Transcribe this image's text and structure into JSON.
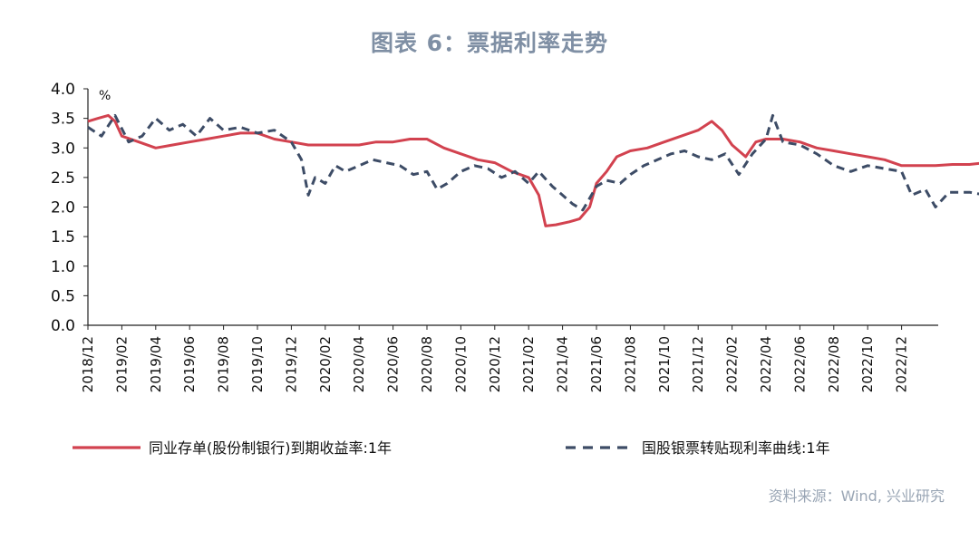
{
  "title": "图表 6：票据利率走势",
  "source": "资料来源：Wind, 兴业研究",
  "chart_data": {
    "type": "line",
    "y_unit": "%",
    "ylim": [
      0,
      4
    ],
    "y_ticks": [
      "0.0",
      "0.5",
      "1.0",
      "1.5",
      "2.0",
      "2.5",
      "3.0",
      "3.5",
      "4.0"
    ],
    "x_ticks": [
      "2018/12",
      "2019/02",
      "2019/04",
      "2019/06",
      "2019/08",
      "2019/10",
      "2019/12",
      "2020/02",
      "2020/04",
      "2020/06",
      "2020/08",
      "2020/10",
      "2020/12",
      "2021/02",
      "2021/04",
      "2021/06",
      "2021/08",
      "2021/10",
      "2021/12",
      "2022/02",
      "2022/04",
      "2022/06",
      "2022/08",
      "2022/10",
      "2022/12"
    ],
    "series": [
      {
        "name": "同业存单(股份制银行)到期收益率:1年",
        "color": "#d2424f",
        "dash": "solid",
        "points": [
          [
            0,
            3.45
          ],
          [
            0.3,
            3.5
          ],
          [
            0.6,
            3.55
          ],
          [
            0.8,
            3.45
          ],
          [
            1.0,
            3.2
          ],
          [
            1.5,
            3.1
          ],
          [
            2.0,
            3.0
          ],
          [
            2.5,
            3.05
          ],
          [
            3.0,
            3.1
          ],
          [
            3.5,
            3.15
          ],
          [
            4.0,
            3.2
          ],
          [
            4.5,
            3.25
          ],
          [
            5.0,
            3.25
          ],
          [
            5.5,
            3.15
          ],
          [
            6.0,
            3.1
          ],
          [
            6.5,
            3.05
          ],
          [
            7.0,
            3.05
          ],
          [
            7.5,
            3.05
          ],
          [
            8.0,
            3.05
          ],
          [
            8.5,
            3.1
          ],
          [
            9.0,
            3.1
          ],
          [
            9.5,
            3.15
          ],
          [
            10.0,
            3.15
          ],
          [
            10.5,
            3.0
          ],
          [
            11.0,
            2.9
          ],
          [
            11.5,
            2.8
          ],
          [
            12.0,
            2.75
          ],
          [
            12.5,
            2.6
          ],
          [
            13.0,
            2.5
          ],
          [
            13.3,
            2.2
          ],
          [
            13.5,
            1.68
          ],
          [
            13.8,
            1.7
          ],
          [
            14.2,
            1.75
          ],
          [
            14.5,
            1.8
          ],
          [
            14.8,
            2.0
          ],
          [
            15.0,
            2.4
          ],
          [
            15.3,
            2.6
          ],
          [
            15.6,
            2.85
          ],
          [
            16.0,
            2.95
          ],
          [
            16.5,
            3.0
          ],
          [
            17.0,
            3.1
          ],
          [
            17.5,
            3.2
          ],
          [
            18.0,
            3.3
          ],
          [
            18.4,
            3.45
          ],
          [
            18.7,
            3.3
          ],
          [
            19.0,
            3.05
          ],
          [
            19.4,
            2.85
          ],
          [
            19.7,
            3.1
          ],
          [
            20.0,
            3.15
          ],
          [
            20.5,
            3.15
          ],
          [
            21.0,
            3.1
          ],
          [
            21.5,
            3.0
          ],
          [
            22.0,
            2.95
          ],
          [
            22.5,
            2.9
          ],
          [
            23.0,
            2.85
          ],
          [
            23.5,
            2.8
          ],
          [
            24.0,
            2.7
          ],
          [
            24.5,
            2.7
          ],
          [
            25.0,
            2.7
          ],
          [
            25.5,
            2.72
          ],
          [
            26.0,
            2.72
          ],
          [
            26.5,
            2.75
          ],
          [
            27.0,
            2.75
          ],
          [
            27.5,
            2.72
          ],
          [
            28.0,
            2.7
          ],
          [
            28.5,
            2.65
          ],
          [
            28.8,
            2.5
          ],
          [
            29.2,
            2.45
          ],
          [
            29.6,
            2.55
          ],
          [
            30.0,
            2.65
          ],
          [
            30.5,
            2.6
          ],
          [
            31.0,
            2.45
          ],
          [
            31.5,
            2.4
          ],
          [
            32.0,
            2.3
          ],
          [
            32.5,
            2.35
          ],
          [
            33.0,
            2.3
          ],
          [
            33.5,
            2.25
          ],
          [
            33.8,
            2.1
          ],
          [
            34.0,
            1.9
          ],
          [
            34.3,
            1.95
          ],
          [
            34.6,
            1.9
          ],
          [
            35.0,
            1.95
          ],
          [
            35.5,
            2.0
          ],
          [
            36.0,
            2.0
          ],
          [
            36.5,
            2.05
          ],
          [
            36.8,
            2.15
          ],
          [
            37.0,
            2.6
          ],
          [
            37.3,
            2.45
          ],
          [
            37.6,
            2.75
          ],
          [
            38.0,
            2.6
          ],
          [
            38.3,
            2.45
          ],
          [
            38.6,
            2.6
          ],
          [
            39.0,
            2.55
          ],
          [
            39.3,
            2.6
          ]
        ]
      },
      {
        "name": "国股银票转贴现利率曲线:1年",
        "color": "#3d4c66",
        "dash": "dashed",
        "points": [
          [
            0,
            3.35
          ],
          [
            0.4,
            3.2
          ],
          [
            0.8,
            3.55
          ],
          [
            1.2,
            3.1
          ],
          [
            1.6,
            3.2
          ],
          [
            2.0,
            3.5
          ],
          [
            2.4,
            3.3
          ],
          [
            2.8,
            3.4
          ],
          [
            3.2,
            3.2
          ],
          [
            3.6,
            3.5
          ],
          [
            4.0,
            3.3
          ],
          [
            4.5,
            3.35
          ],
          [
            5.0,
            3.25
          ],
          [
            5.5,
            3.3
          ],
          [
            6.0,
            3.1
          ],
          [
            6.3,
            2.8
          ],
          [
            6.5,
            2.2
          ],
          [
            6.7,
            2.5
          ],
          [
            7.0,
            2.4
          ],
          [
            7.3,
            2.7
          ],
          [
            7.6,
            2.6
          ],
          [
            8.0,
            2.7
          ],
          [
            8.4,
            2.8
          ],
          [
            8.8,
            2.75
          ],
          [
            9.2,
            2.7
          ],
          [
            9.6,
            2.55
          ],
          [
            10.0,
            2.6
          ],
          [
            10.3,
            2.3
          ],
          [
            10.6,
            2.4
          ],
          [
            11.0,
            2.6
          ],
          [
            11.4,
            2.7
          ],
          [
            11.8,
            2.65
          ],
          [
            12.2,
            2.5
          ],
          [
            12.6,
            2.6
          ],
          [
            13.0,
            2.4
          ],
          [
            13.3,
            2.6
          ],
          [
            13.7,
            2.35
          ],
          [
            14.0,
            2.2
          ],
          [
            14.3,
            2.05
          ],
          [
            14.6,
            1.95
          ],
          [
            15.0,
            2.35
          ],
          [
            15.3,
            2.45
          ],
          [
            15.7,
            2.4
          ],
          [
            16.0,
            2.55
          ],
          [
            16.4,
            2.7
          ],
          [
            16.8,
            2.8
          ],
          [
            17.2,
            2.9
          ],
          [
            17.6,
            2.95
          ],
          [
            18.0,
            2.85
          ],
          [
            18.4,
            2.8
          ],
          [
            18.8,
            2.9
          ],
          [
            19.2,
            2.55
          ],
          [
            19.6,
            2.9
          ],
          [
            20.0,
            3.15
          ],
          [
            20.2,
            3.55
          ],
          [
            20.5,
            3.1
          ],
          [
            21.0,
            3.05
          ],
          [
            21.5,
            2.9
          ],
          [
            22.0,
            2.7
          ],
          [
            22.5,
            2.6
          ],
          [
            23.0,
            2.7
          ],
          [
            23.5,
            2.65
          ],
          [
            24.0,
            2.6
          ],
          [
            24.3,
            2.2
          ],
          [
            24.7,
            2.3
          ],
          [
            25.0,
            2.0
          ],
          [
            25.4,
            2.25
          ],
          [
            26.0,
            2.25
          ],
          [
            26.5,
            2.2
          ],
          [
            27.0,
            2.25
          ],
          [
            27.5,
            2.2
          ],
          [
            27.8,
            1.8
          ],
          [
            28.1,
            2.1
          ],
          [
            28.4,
            0.8
          ],
          [
            28.7,
            1.8
          ],
          [
            29.0,
            2.6
          ],
          [
            29.3,
            2.95
          ],
          [
            29.6,
            2.5
          ],
          [
            30.0,
            2.4
          ],
          [
            30.3,
            1.95
          ],
          [
            30.6,
            2.1
          ],
          [
            31.0,
            2.2
          ],
          [
            31.4,
            1.8
          ],
          [
            31.7,
            1.4
          ],
          [
            32.0,
            1.3
          ],
          [
            32.3,
            0.9
          ],
          [
            32.6,
            1.5
          ],
          [
            33.0,
            1.6
          ],
          [
            33.3,
            1.3
          ],
          [
            33.6,
            1.1
          ],
          [
            34.0,
            1.15
          ],
          [
            34.3,
            0.75
          ],
          [
            34.6,
            1.35
          ],
          [
            35.0,
            1.2
          ],
          [
            35.3,
            1.5
          ],
          [
            35.7,
            1.4
          ],
          [
            36.0,
            1.65
          ],
          [
            36.5,
            1.55
          ],
          [
            37.0,
            1.4
          ],
          [
            37.5,
            1.3
          ],
          [
            38.0,
            1.3
          ],
          [
            38.4,
            1.2
          ],
          [
            38.8,
            1.55
          ],
          [
            39.1,
            1.8
          ],
          [
            39.3,
            1.95
          ]
        ]
      }
    ],
    "legend_position": "bottom"
  }
}
